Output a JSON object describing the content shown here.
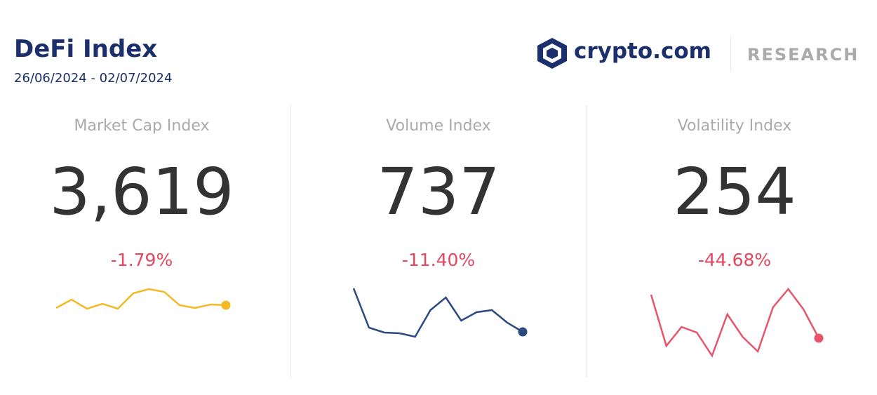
{
  "header": {
    "title": "DeFi Index",
    "date_range": "26/06/2024 - 02/07/2024",
    "brand": "crypto.com",
    "brand_section": "RESEARCH"
  },
  "cards": [
    {
      "title": "Market Cap Index",
      "value": "3,619",
      "change": "-1.79%",
      "sparkline": {
        "type": "line",
        "color": "#f4b924",
        "values": [
          161,
          173,
          160,
          167,
          160,
          182,
          188,
          184,
          165,
          161,
          166,
          165
        ]
      }
    },
    {
      "title": "Volume Index",
      "value": "737",
      "change": "-11.40%",
      "sparkline": {
        "type": "line",
        "color": "#2a4a80",
        "values": [
          189,
          133,
          126,
          125,
          120,
          158,
          176,
          143,
          155,
          158,
          140,
          127
        ]
      }
    },
    {
      "title": "Volatility Index",
      "value": "254",
      "change": "-44.68%",
      "sparkline": {
        "type": "line",
        "color": "#e8546b",
        "values": [
          180,
          107,
          134,
          126,
          93,
          152,
          120,
          99,
          162,
          188,
          159,
          118
        ]
      }
    }
  ]
}
